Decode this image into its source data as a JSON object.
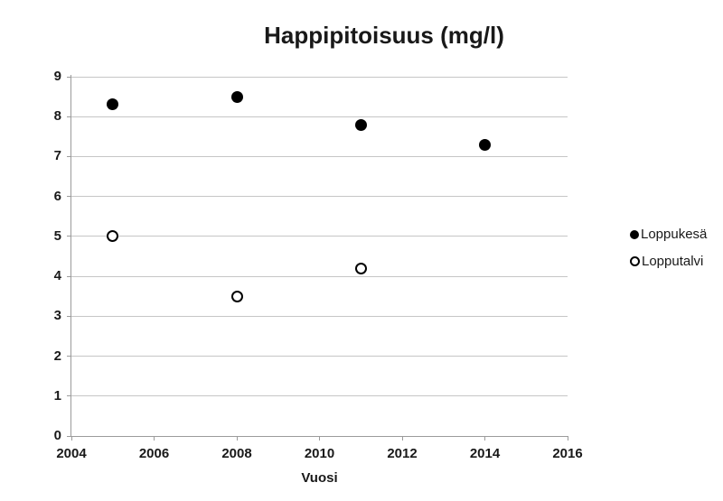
{
  "chart_data": {
    "type": "scatter",
    "title": "Happipitoisuus (mg/l)",
    "xlabel": "Vuosi",
    "ylabel": "",
    "xlim": [
      2004,
      2016
    ],
    "ylim": [
      0,
      9
    ],
    "xticks": [
      2004,
      2006,
      2008,
      2010,
      2012,
      2014,
      2016
    ],
    "yticks": [
      0,
      1,
      2,
      3,
      4,
      5,
      6,
      7,
      8,
      9
    ],
    "grid": "horizontal-major",
    "legend_position": "right",
    "series": [
      {
        "name": "Loppukesä",
        "marker": "filled-circle",
        "color": "#000000",
        "points": [
          [
            2005,
            8.3
          ],
          [
            2008,
            8.5
          ],
          [
            2011,
            7.8
          ],
          [
            2014,
            7.3
          ]
        ]
      },
      {
        "name": "Lopputalvi",
        "marker": "open-circle",
        "color": "#000000",
        "points": [
          [
            2005,
            5.0
          ],
          [
            2008,
            3.5
          ],
          [
            2011,
            4.2
          ]
        ]
      }
    ]
  },
  "colors": {
    "background": "#ffffff",
    "gridline": "#c6c6c6",
    "axis": "#9b9b9b",
    "text": "#191919",
    "marker": "#000000"
  }
}
